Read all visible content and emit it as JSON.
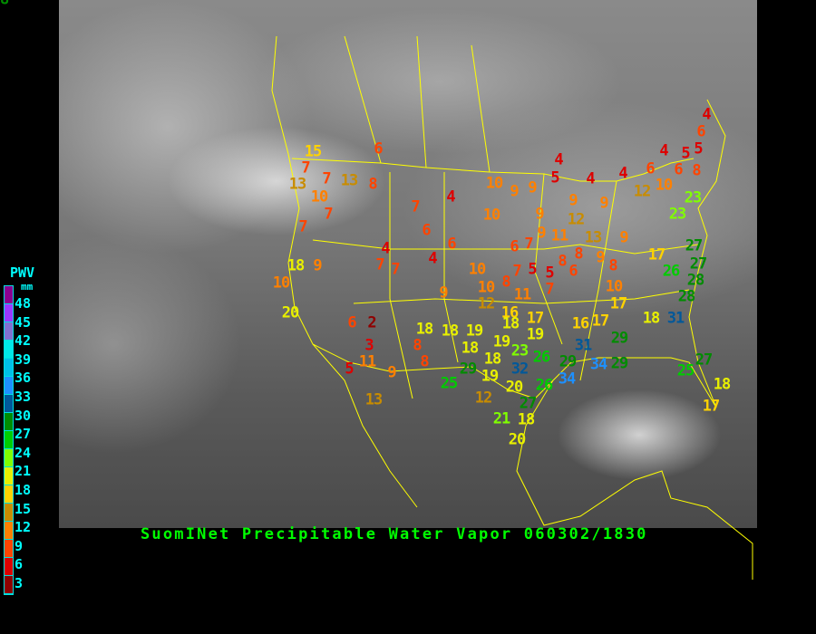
{
  "title": "SuomINet Precipitable Water Vapor 060302/1830",
  "legend": {
    "title": "PWV",
    "unit": "mm",
    "labels": [
      "48",
      "45",
      "42",
      "39",
      "36",
      "33",
      "30",
      "27",
      "24",
      "21",
      "18",
      "15",
      "12",
      "9",
      "6",
      "3"
    ],
    "colors": [
      "#8b0090",
      "#9a38ff",
      "#8070d0",
      "#00e8e8",
      "#00c0e8",
      "#1e90ff",
      "#00589a",
      "#008c00",
      "#00cc00",
      "#80ff00",
      "#e8f000",
      "#ffd200",
      "#c88c00",
      "#ff8000",
      "#ff4400",
      "#dd0000",
      "#900000"
    ]
  },
  "stations": [
    "15",
    "7",
    "13",
    "7",
    "13",
    "10",
    "8",
    "7",
    "7",
    "6",
    "7",
    "4",
    "6",
    "4",
    "7",
    "7",
    "4",
    "18",
    "9",
    "10",
    "20",
    "9",
    "10",
    "10",
    "12",
    "16",
    "11",
    "7",
    "8",
    "5",
    "5",
    "6",
    "7",
    "6",
    "7",
    "9",
    "11",
    "9",
    "13",
    "8",
    "9",
    "8",
    "8",
    "6",
    "10",
    "17",
    "26",
    "27",
    "27",
    "28",
    "28",
    "23",
    "23",
    "9",
    "12",
    "9",
    "9",
    "10",
    "12",
    "10",
    "6",
    "6",
    "8",
    "5",
    "5",
    "6",
    "4",
    "4",
    "4",
    "4",
    "5",
    "4",
    "9",
    "9",
    "10",
    "6",
    "2",
    "3",
    "11",
    "5",
    "9",
    "13",
    "18",
    "8",
    "8",
    "18",
    "18",
    "19",
    "18",
    "17",
    "19",
    "19",
    "18",
    "23",
    "26",
    "32",
    "29",
    "19",
    "20",
    "26",
    "27",
    "25",
    "12",
    "21",
    "18",
    "20",
    "17",
    "16",
    "17",
    "18",
    "31",
    "29",
    "31",
    "29",
    "34",
    "34",
    "29",
    "25",
    "27",
    "18",
    "17",
    "28"
  ]
}
